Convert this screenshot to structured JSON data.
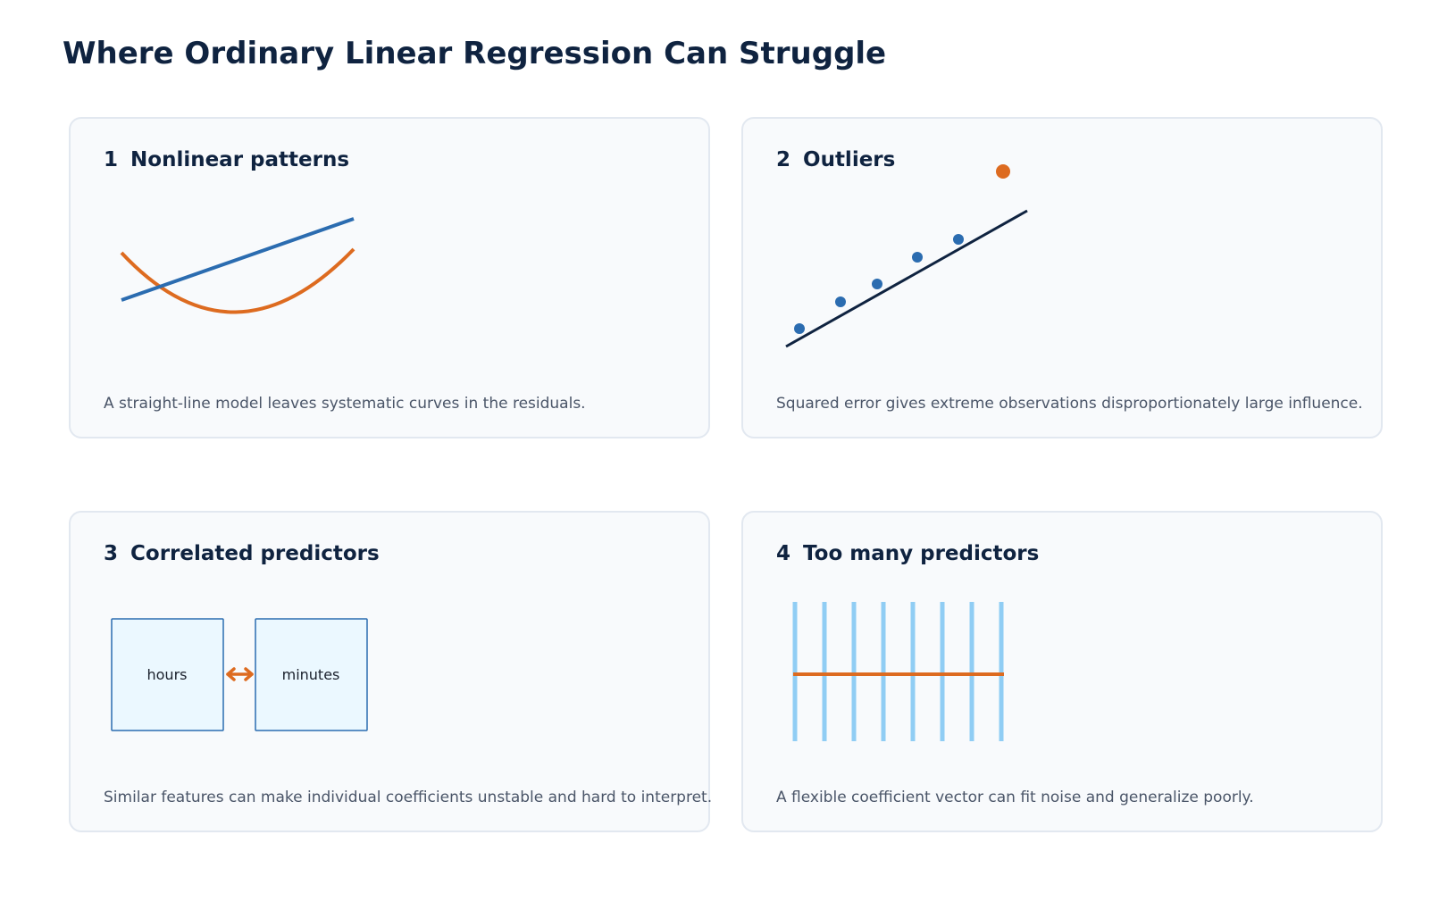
{
  "title": "Where Ordinary Linear Regression Can Struggle",
  "colors": {
    "title": "#0f2340",
    "card_background": "#f8fafc",
    "card_border": "#e2e8f0",
    "blue": "#2b6cb0",
    "orange": "#dd6b20",
    "navy": "#0f2340",
    "light_blue": "#90cdf4",
    "box_fill": "#ebf8ff"
  },
  "cards": [
    {
      "number": "1",
      "heading": "Nonlinear patterns",
      "description": "A straight-line model leaves systematic curves in the residuals."
    },
    {
      "number": "2",
      "heading": "Outliers",
      "description": "Squared error gives extreme observations disproportionately large influence."
    },
    {
      "number": "3",
      "heading": "Correlated predictors",
      "description": "Similar features can make individual coefficients unstable and hard to interpret.",
      "boxes": [
        "hours",
        "minutes"
      ]
    },
    {
      "number": "4",
      "heading": "Too many predictors",
      "description": "A flexible coefficient vector can fit noise and generalize poorly."
    }
  ]
}
